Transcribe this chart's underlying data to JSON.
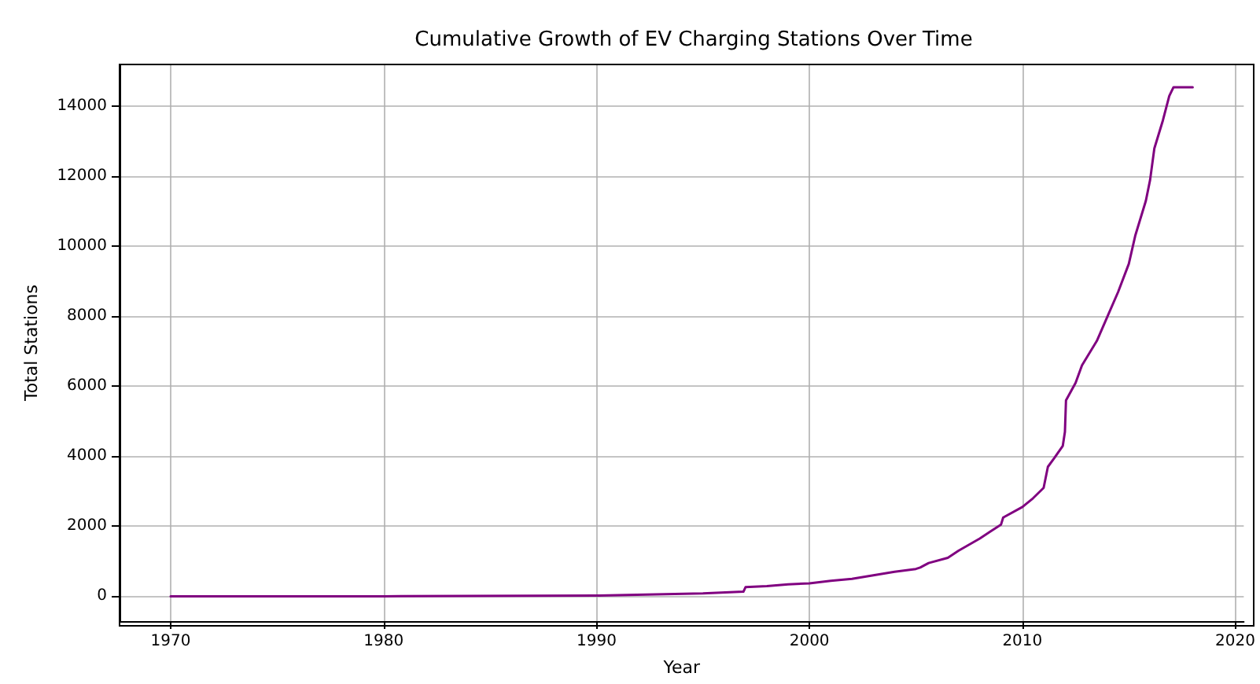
{
  "chart_data": {
    "type": "line",
    "title": "Cumulative Growth of EV Charging Stations Over Time",
    "xlabel": "Year",
    "ylabel": "Total Stations",
    "x": [
      1970,
      1980,
      1990,
      1995,
      1996.9,
      1997.0,
      1998,
      1999,
      2000,
      2001,
      2002,
      2003,
      2004,
      2005,
      2005.2,
      2005.6,
      2006.5,
      2007,
      2008,
      2008.5,
      2009,
      2009.1,
      2010,
      2010.5,
      2011,
      2011.2,
      2011.5,
      2011.9,
      2012.0,
      2012.05,
      2012.5,
      2012.8,
      2013.5,
      2014,
      2014.5,
      2015,
      2015.3,
      2015.8,
      2016,
      2016.2,
      2016.6,
      2016.9,
      2017.1,
      2018
    ],
    "series": [
      {
        "color": "#800080",
        "values": [
          0,
          0,
          20,
          80,
          130,
          260,
          290,
          340,
          370,
          440,
          500,
          600,
          700,
          780,
          820,
          950,
          1100,
          1300,
          1650,
          1850,
          2050,
          2250,
          2550,
          2800,
          3100,
          3700,
          3950,
          4300,
          4700,
          5600,
          6100,
          6600,
          7300,
          8000,
          8700,
          9500,
          10300,
          11300,
          11900,
          12800,
          13600,
          14300,
          14550,
          14550
        ]
      }
    ],
    "xlim": [
      1967.6,
      2020.4
    ],
    "xticks": [
      1970,
      1980,
      1990,
      2000,
      2010,
      2020
    ],
    "ylim": [
      -710,
      15200
    ],
    "yticks": [
      0,
      2000,
      4000,
      6000,
      8000,
      10000,
      12000,
      14000
    ],
    "grid": true,
    "marker": "none",
    "line_style": "solid"
  }
}
